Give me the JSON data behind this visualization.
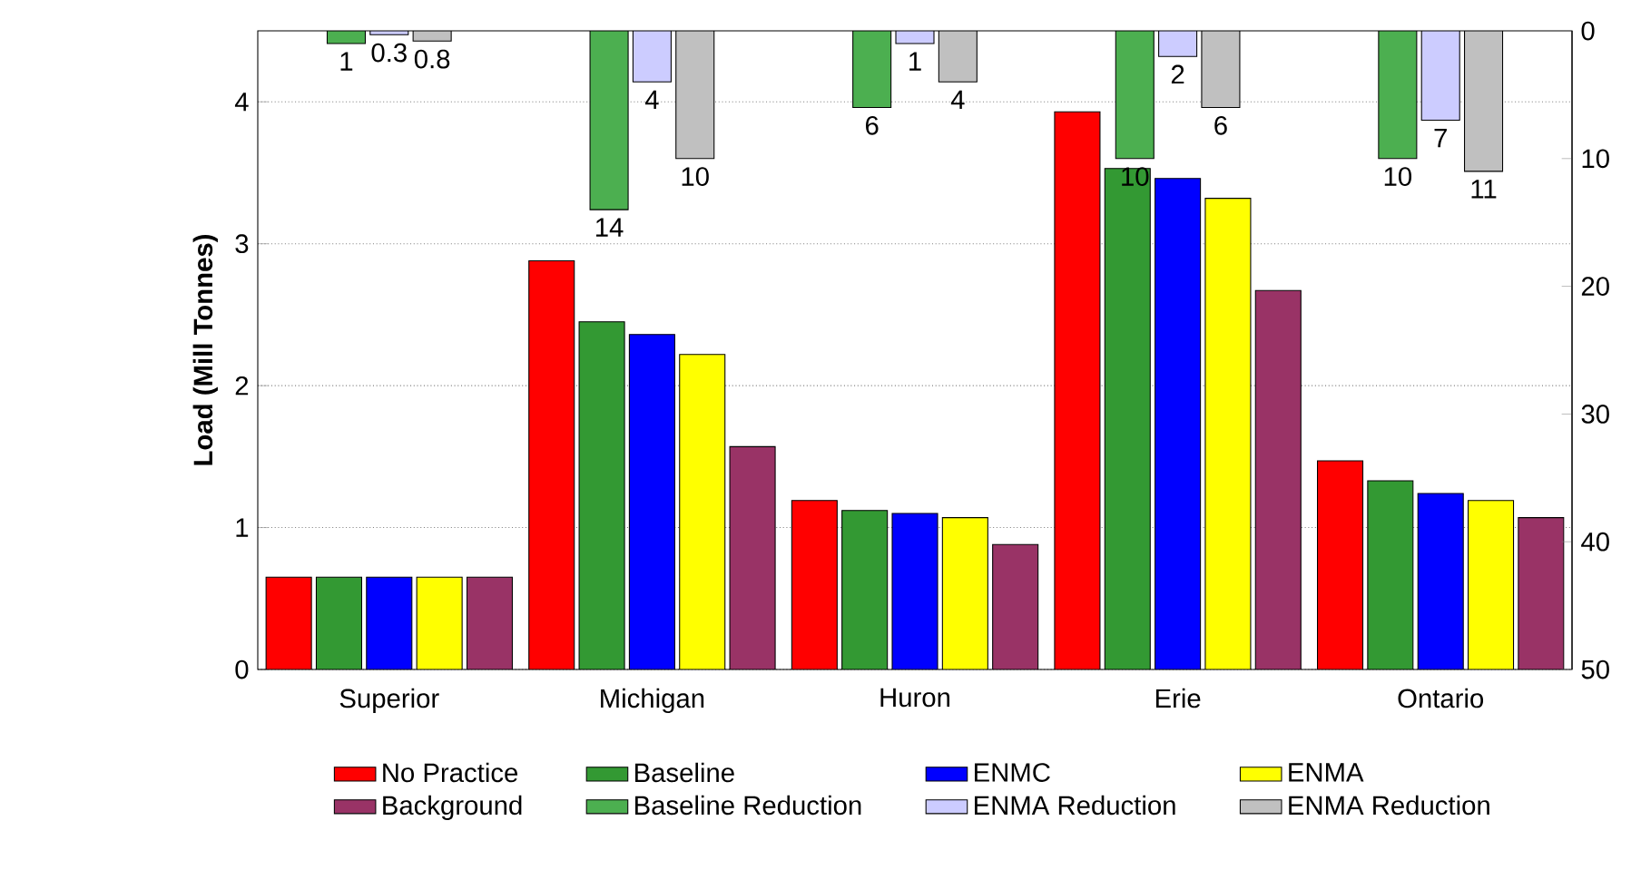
{
  "chart_data": {
    "type": "bar",
    "ylabel": "Load (Mill Tonnes)",
    "categories": [
      "Superior",
      "Michigan",
      "Huron",
      "Erie",
      "Ontario"
    ],
    "series": [
      {
        "name": "No Practice",
        "color": "#ff0000",
        "values": [
          0.65,
          2.88,
          1.19,
          3.93,
          1.47
        ]
      },
      {
        "name": "Baseline",
        "color": "#339933",
        "values": [
          0.65,
          2.45,
          1.12,
          3.53,
          1.33
        ]
      },
      {
        "name": "ENMC",
        "color": "#0000ff",
        "values": [
          0.65,
          2.36,
          1.1,
          3.46,
          1.24
        ]
      },
      {
        "name": "ENMA",
        "color": "#ffff00",
        "values": [
          0.65,
          2.22,
          1.07,
          3.32,
          1.19
        ]
      },
      {
        "name": "Background",
        "color": "#993366",
        "values": [
          0.65,
          1.57,
          0.88,
          2.67,
          1.07
        ]
      },
      {
        "name": "Baseline Reduction",
        "color": "#4caf50",
        "axis": "y2",
        "values": [
          1,
          14,
          6,
          10,
          10
        ],
        "value_labels": [
          "1",
          "14",
          "6",
          "10",
          "10"
        ]
      },
      {
        "name": "ENMA Reduction",
        "color": "#ccccff",
        "axis": "y2",
        "values": [
          0.3,
          4,
          1,
          2,
          7
        ],
        "value_labels": [
          "0.3",
          "4",
          "1",
          "2",
          "7"
        ]
      },
      {
        "name": "ENMA Reduction",
        "color": "#c0c0c0",
        "axis": "y2",
        "values": [
          0.8,
          10,
          4,
          6,
          11
        ],
        "value_labels": [
          "0.8",
          "10",
          "4",
          "6",
          "11"
        ]
      }
    ],
    "ylim": [
      0,
      4.5
    ],
    "yticks": [
      0,
      1,
      2,
      3,
      4
    ],
    "y2lim": [
      50,
      0
    ],
    "y2ticks": [
      0,
      10,
      20,
      30,
      40,
      50
    ],
    "grid": "y",
    "legend": "bottom"
  }
}
